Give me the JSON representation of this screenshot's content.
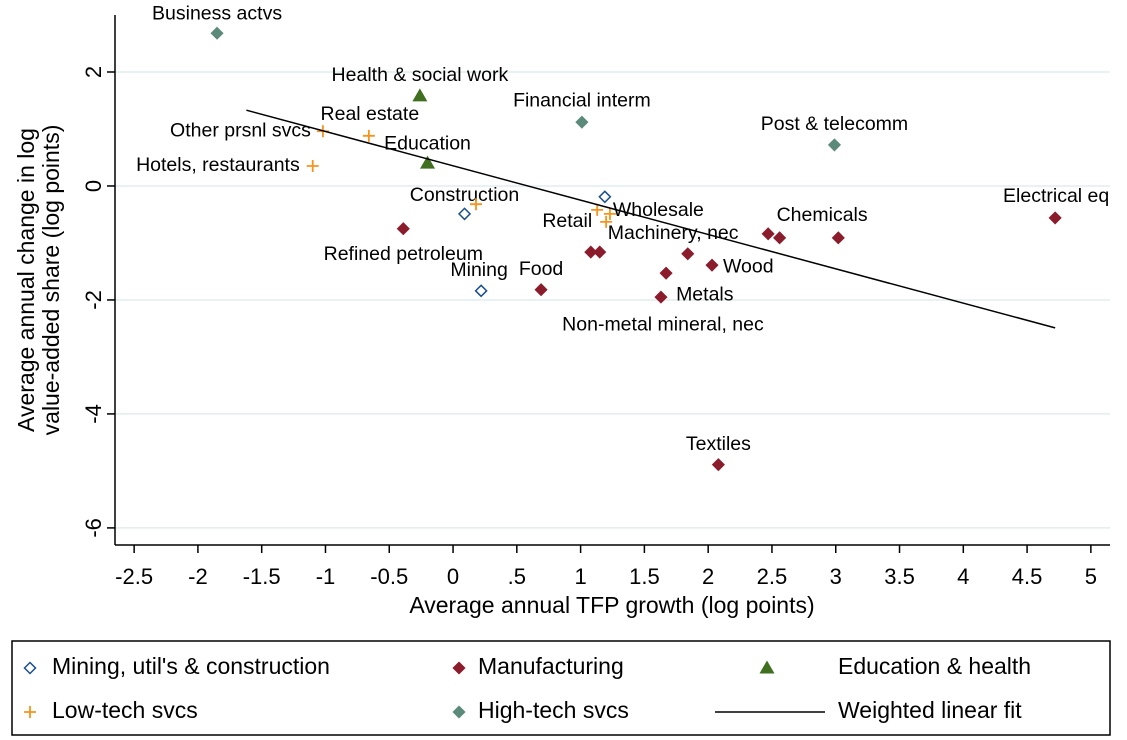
{
  "chart_data": {
    "type": "scatter",
    "xlabel": "Average annual TFP growth (log points)",
    "ylabel": [
      "Average annual change in log",
      "value-added share (log points)"
    ],
    "xlim": [
      -2.65,
      5.15
    ],
    "ylim": [
      -6.3,
      3.0
    ],
    "xticks": [
      -2.5,
      -2,
      -1.5,
      -1,
      -0.5,
      0,
      {
        "value": 0.5,
        "label": ".5"
      },
      1,
      1.5,
      2,
      2.5,
      3,
      3.5,
      4,
      4.5,
      5
    ],
    "yticks": [
      -6,
      -4,
      -2,
      0,
      2
    ],
    "grid": true,
    "legend": "bottom",
    "series": [
      {
        "name": "Mining, util's & construction",
        "color": "#1a4f8c",
        "marker": "hollow-diamond",
        "x": [
          0.09,
          0.22,
          1.19
        ],
        "y": [
          -0.49,
          -1.84,
          -0.19
        ],
        "labels": [
          "Construction",
          "Mining",
          "Wholesale"
        ]
      },
      {
        "name": "Manufacturing",
        "color": "#8b1c2c",
        "marker": "diamond",
        "x": [
          -0.39,
          0.69,
          1.08,
          1.15,
          1.67,
          1.63,
          1.84,
          2.03,
          2.47,
          2.56,
          3.02,
          4.72,
          2.08
        ],
        "y": [
          -0.75,
          -1.82,
          -1.16,
          -1.16,
          -1.53,
          -1.95,
          -1.19,
          -1.39,
          -0.84,
          -0.91,
          -0.91,
          -0.56,
          -4.89
        ],
        "labels": [
          "Refined petroleum",
          "Food",
          null,
          "Machinery, nec",
          "Metals",
          "Non-metal mineral, nec",
          null,
          "Wood",
          null,
          "Chemicals",
          null,
          "Electrical eq",
          "Textiles"
        ]
      },
      {
        "name": "Education & health",
        "color": "#3f6f1f",
        "marker": "triangle",
        "x": [
          -0.26,
          -0.2
        ],
        "y": [
          1.58,
          0.4
        ],
        "labels": [
          "Health & social work",
          "Education"
        ]
      },
      {
        "name": "Low-tech svcs",
        "color": "#f7941d",
        "marker": "plus",
        "x": [
          -1.02,
          -0.66,
          -1.1,
          0.18,
          1.13,
          1.2,
          1.23
        ],
        "y": [
          0.96,
          0.88,
          0.35,
          -0.32,
          -0.42,
          -0.63,
          -0.49
        ],
        "labels": [
          "Other prsnl svcs",
          "Real estate",
          "Hotels, restaurants",
          null,
          "Retail",
          null,
          null
        ]
      },
      {
        "name": "High-tech svcs",
        "color": "#5b8a7a",
        "marker": "diamond",
        "x": [
          -1.85,
          1.01,
          2.99
        ],
        "y": [
          2.68,
          1.12,
          0.72
        ],
        "labels": [
          "Business actvs",
          "Financial interm",
          "Post & telecomm"
        ]
      },
      {
        "name": "Weighted linear fit",
        "color": "#000000",
        "marker": "line",
        "x": [
          -1.62,
          4.72
        ],
        "y": [
          1.33,
          -2.49
        ]
      }
    ]
  }
}
